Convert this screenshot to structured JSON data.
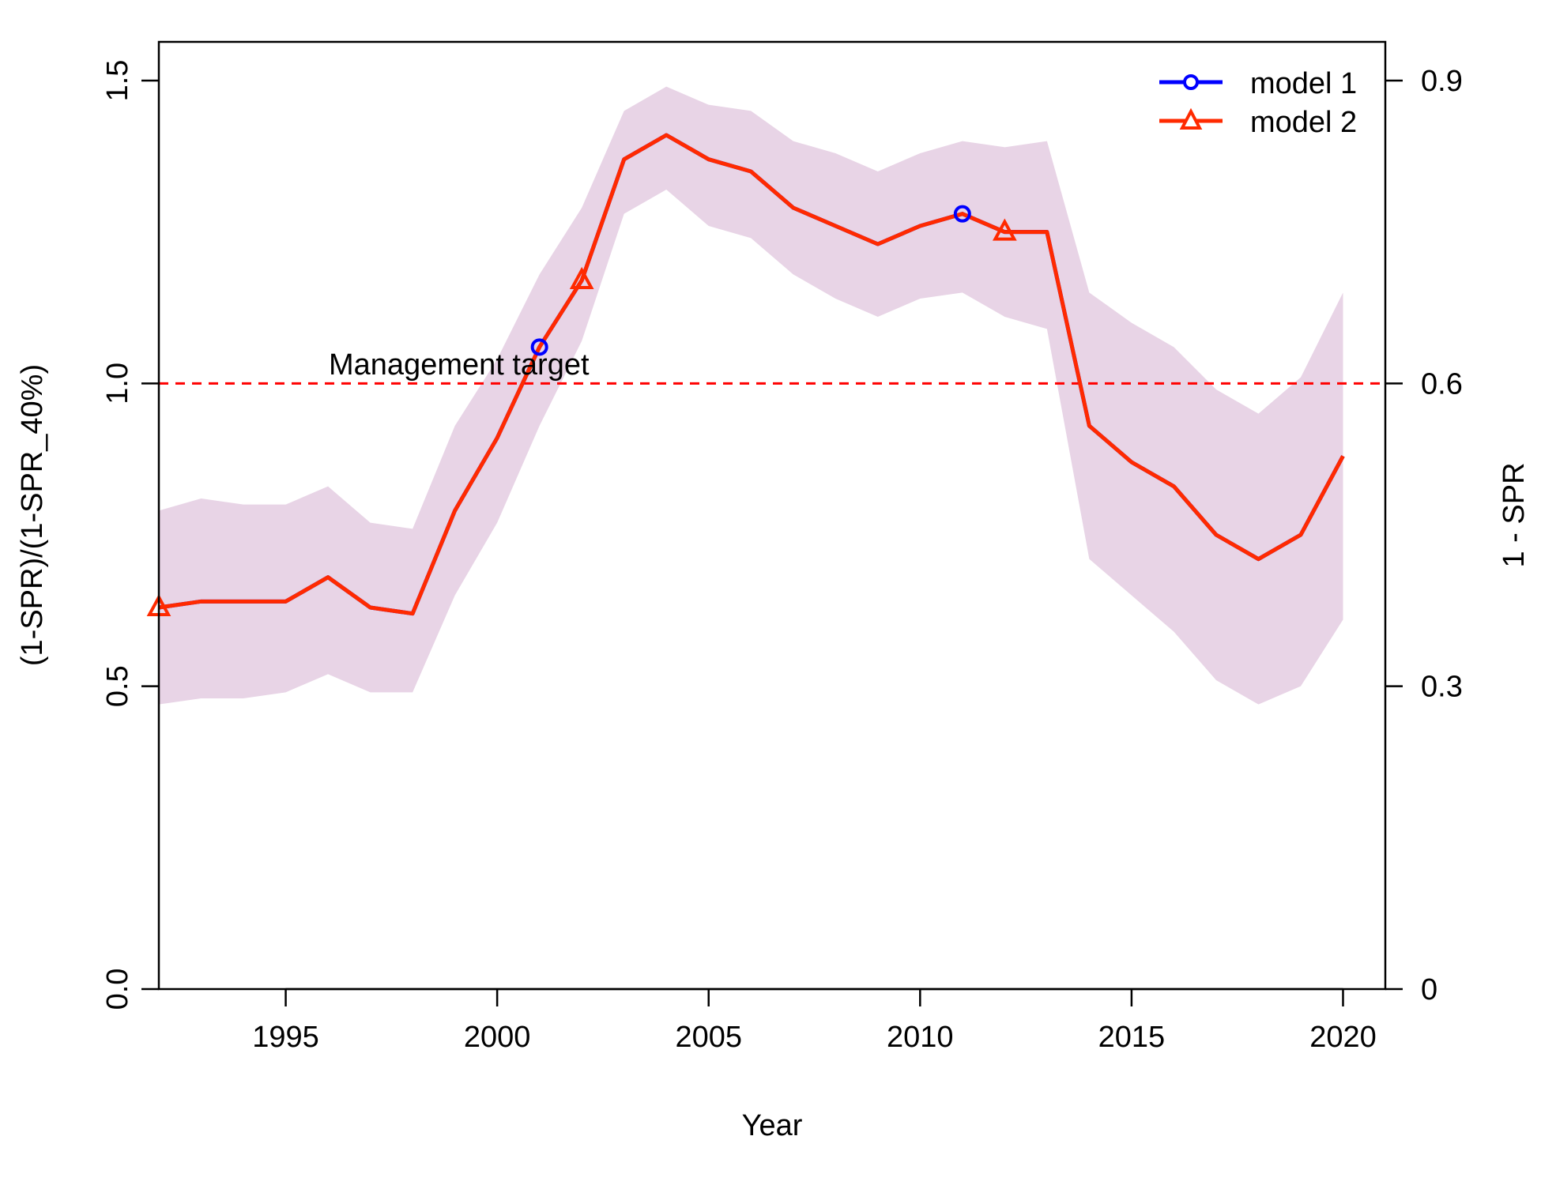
{
  "chart_data": {
    "type": "line",
    "xlabel": "Year",
    "ylabel_left": "(1-SPR)/(1-SPR_40%)",
    "ylabel_right": "1 - SPR",
    "xlim": [
      1992,
      2021
    ],
    "ylim": [
      0,
      1.5
    ],
    "x_ticks": [
      "1995",
      "2000",
      "2005",
      "2010",
      "2015",
      "2020"
    ],
    "y_ticks_left": [
      "0.0",
      "0.5",
      "1.0",
      "1.5"
    ],
    "y_ticks_right": [
      "0",
      "0.3",
      "0.6",
      "0.9"
    ],
    "reference_line": {
      "y": 1.0,
      "label": "Management target",
      "color": "#ff0000"
    },
    "x": [
      1992,
      1993,
      1994,
      1995,
      1996,
      1997,
      1998,
      1999,
      2000,
      2001,
      2002,
      2003,
      2004,
      2005,
      2006,
      2007,
      2008,
      2009,
      2010,
      2011,
      2012,
      2013,
      2014,
      2015,
      2016,
      2017,
      2018,
      2019,
      2020
    ],
    "band": {
      "color": "#e8d4e6",
      "upper": [
        0.79,
        0.81,
        0.8,
        0.8,
        0.83,
        0.77,
        0.76,
        0.93,
        1.04,
        1.18,
        1.29,
        1.45,
        1.49,
        1.46,
        1.45,
        1.4,
        1.38,
        1.35,
        1.38,
        1.4,
        1.39,
        1.4,
        1.15,
        1.1,
        1.06,
        0.99,
        0.95,
        1.01,
        1.15
      ],
      "lower": [
        0.47,
        0.48,
        0.48,
        0.49,
        0.52,
        0.49,
        0.49,
        0.65,
        0.77,
        0.93,
        1.07,
        1.28,
        1.32,
        1.26,
        1.24,
        1.18,
        1.14,
        1.11,
        1.14,
        1.15,
        1.11,
        1.09,
        0.71,
        0.65,
        0.59,
        0.51,
        0.47,
        0.5,
        0.61
      ]
    },
    "series": [
      {
        "name": "model 1",
        "color": "#0000ff",
        "marker": "circle",
        "values": [
          0.63,
          0.64,
          0.64,
          0.64,
          0.68,
          0.63,
          0.62,
          0.79,
          0.91,
          1.06,
          1.17,
          1.37,
          1.41,
          1.37,
          1.35,
          1.29,
          1.26,
          1.23,
          1.26,
          1.28,
          1.25,
          1.25,
          0.93,
          0.87,
          0.83,
          0.75,
          0.71,
          0.75,
          0.88
        ],
        "marker_x": [
          2001,
          2011
        ]
      },
      {
        "name": "model 2",
        "color": "#ff2a00",
        "marker": "triangle",
        "values": [
          0.63,
          0.64,
          0.64,
          0.64,
          0.68,
          0.63,
          0.62,
          0.79,
          0.91,
          1.06,
          1.17,
          1.37,
          1.41,
          1.37,
          1.35,
          1.29,
          1.26,
          1.23,
          1.26,
          1.28,
          1.25,
          1.25,
          0.93,
          0.87,
          0.83,
          0.75,
          0.71,
          0.75,
          0.88
        ],
        "marker_x": [
          1992,
          2002,
          2012
        ]
      }
    ],
    "legend": {
      "position": "top-right",
      "entries": [
        "model 1",
        "model 2"
      ]
    },
    "grid": false
  }
}
